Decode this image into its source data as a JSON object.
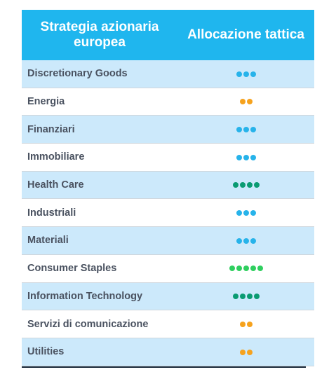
{
  "header": {
    "col1": "Strategia azionaria europea",
    "col2": "Allocazione tattica"
  },
  "colors": {
    "header_bg": "#1fb6ee",
    "row_alt_bg": "#cce9fb",
    "neutral": "#27b3ea",
    "underweight": "#f6a21d",
    "overweight": "#0a9b72",
    "strong_overweight": "#2fcf5f"
  },
  "rows": [
    {
      "label": "Discretionary Goods",
      "count": 3,
      "color": "#27b3ea"
    },
    {
      "label": "Energia",
      "count": 2,
      "color": "#f6a21d"
    },
    {
      "label": "Finanziari",
      "count": 3,
      "color": "#27b3ea"
    },
    {
      "label": "Immobiliare",
      "count": 3,
      "color": "#27b3ea"
    },
    {
      "label": "Health Care",
      "count": 4,
      "color": "#0a9b72"
    },
    {
      "label": "Industriali",
      "count": 3,
      "color": "#27b3ea"
    },
    {
      "label": "Materiali",
      "count": 3,
      "color": "#27b3ea"
    },
    {
      "label": "Consumer Staples",
      "count": 5,
      "color": "#2fcf5f"
    },
    {
      "label": "Information Technology",
      "count": 4,
      "color": "#0a9b72"
    },
    {
      "label": "Servizi di comunicazione",
      "count": 2,
      "color": "#f6a21d"
    },
    {
      "label": "Utilities",
      "count": 2,
      "color": "#f6a21d"
    }
  ]
}
